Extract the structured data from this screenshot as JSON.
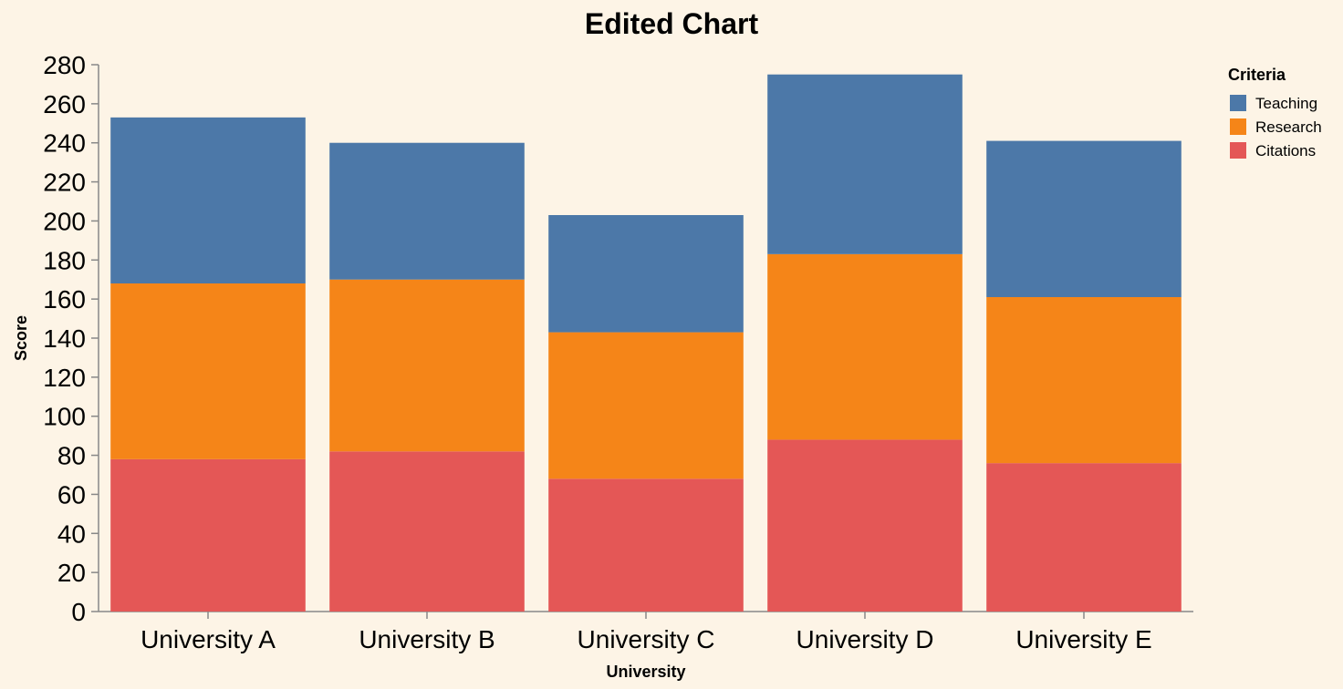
{
  "chart_data": {
    "type": "bar",
    "stacked": true,
    "title": "Edited Chart",
    "xlabel": "University",
    "ylabel": "Score",
    "ylim": [
      0,
      280
    ],
    "yticks": [
      0,
      20,
      40,
      60,
      80,
      100,
      120,
      140,
      160,
      180,
      200,
      220,
      240,
      260,
      280
    ],
    "grid": false,
    "categories": [
      "University A",
      "University B",
      "University C",
      "University D",
      "University E"
    ],
    "series": [
      {
        "name": "Citations",
        "color": "#e45756",
        "values": [
          78,
          82,
          68,
          88,
          76
        ]
      },
      {
        "name": "Research",
        "color": "#f58518",
        "values": [
          90,
          88,
          75,
          95,
          85
        ]
      },
      {
        "name": "Teaching",
        "color": "#4c78a8",
        "values": [
          85,
          70,
          60,
          92,
          80
        ]
      }
    ],
    "legend": {
      "title": "Criteria",
      "position": "top-right",
      "order": [
        "Teaching",
        "Research",
        "Citations"
      ]
    }
  }
}
